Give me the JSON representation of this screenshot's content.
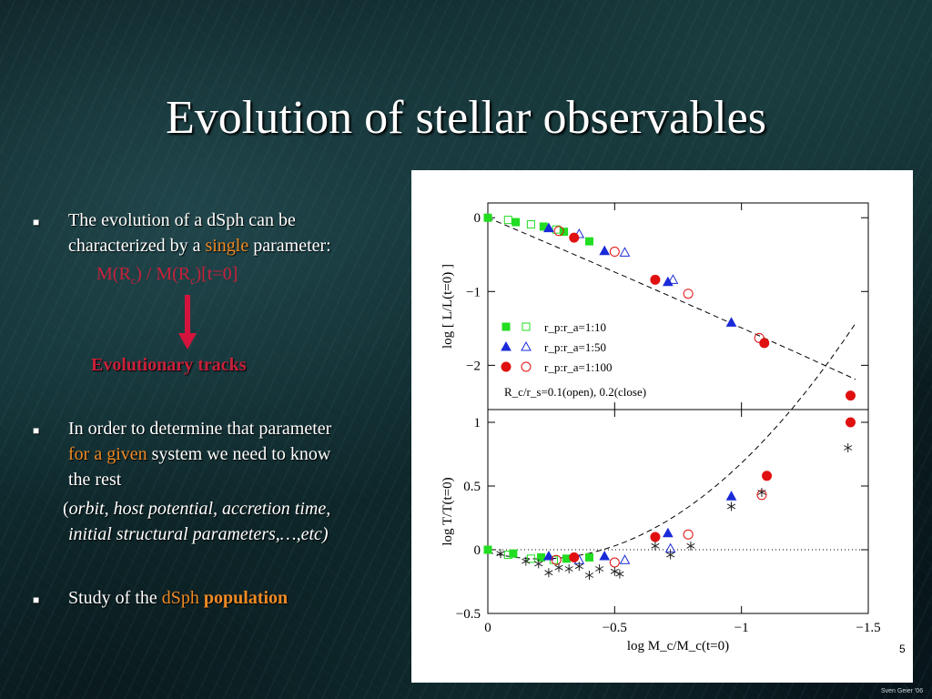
{
  "title": "Evolution of stellar observables",
  "bullets": {
    "b1_part1": "The evolution of a dSph can be",
    "b1_part2": "characterized by a ",
    "b1_highlight": "single",
    "b1_part3": " parameter:",
    "formula": "M(R",
    "formula_sub1": "c",
    "formula_mid": ") / M(R",
    "formula_sub2": "c",
    "formula_end": ")[t=0]",
    "evolutionary_tracks": "Evolutionary tracks",
    "b2_part1": "In order to determine that parameter",
    "b2_highlight": "for a given",
    "b2_part2": " system we need to know",
    "b2_part3": "the rest",
    "b2_paren_open": "(",
    "b2_italic1": "orbit, host potential, accretion time,",
    "b2_italic2": "initial structural parameters,…,etc)",
    "b3_part1": "Study of the ",
    "b3_highlight1": "dSph",
    "b3_highlight2": "population"
  },
  "page_number": "5",
  "signature": "Sven Geier '06",
  "colors": {
    "highlight_orange": "#f08a24",
    "highlight_red": "#c8203a",
    "green": "#22dd22",
    "blue": "#1a2ad8",
    "red": "#e01010"
  },
  "chart_data": [
    {
      "type": "scatter",
      "title": "",
      "xlabel": "log M_c/M_c(t=0)",
      "ylabel": "log [ L/L(t=0) ]",
      "xlim": [
        0,
        -1.5
      ],
      "ylim": [
        -2.6,
        0.2
      ],
      "x_ticks": [
        "0",
        "−0.5",
        "−1",
        "−1.5"
      ],
      "y_ticks": [
        "0",
        "−1",
        "−2"
      ],
      "legend": {
        "placement": "bottom-left",
        "entries": [
          "r_p:r_a=1:10",
          "r_p:r_a=1:50",
          "r_p:r_a=1:100"
        ],
        "note": "R_c/r_s=0.1(open), 0.2(close)"
      },
      "series": [
        {
          "marker": "square",
          "color": "#22dd22",
          "filled": true,
          "points": [
            [
              0,
              0
            ],
            [
              -0.11,
              -0.06
            ],
            [
              -0.22,
              -0.12
            ],
            [
              -0.3,
              -0.19
            ],
            [
              -0.4,
              -0.32
            ]
          ]
        },
        {
          "marker": "square",
          "color": "#22dd22",
          "filled": false,
          "points": [
            [
              -0.08,
              -0.03
            ],
            [
              -0.17,
              -0.09
            ],
            [
              -0.27,
              -0.16
            ]
          ]
        },
        {
          "marker": "triangle",
          "color": "#1a2ad8",
          "filled": true,
          "points": [
            [
              -0.24,
              -0.14
            ],
            [
              -0.46,
              -0.45
            ],
            [
              -0.71,
              -0.87
            ],
            [
              -0.96,
              -1.42
            ]
          ]
        },
        {
          "marker": "triangle",
          "color": "#1a2ad8",
          "filled": false,
          "points": [
            [
              -0.36,
              -0.22
            ],
            [
              -0.54,
              -0.47
            ],
            [
              -0.73,
              -0.84
            ]
          ]
        },
        {
          "marker": "circle",
          "color": "#e01010",
          "filled": true,
          "points": [
            [
              -0.34,
              -0.27
            ],
            [
              -0.66,
              -0.84
            ],
            [
              -1.09,
              -1.7
            ],
            [
              -1.43,
              -2.41
            ]
          ]
        },
        {
          "marker": "circle",
          "color": "#e01010",
          "filled": false,
          "points": [
            [
              -0.28,
              -0.18
            ],
            [
              -0.5,
              -0.46
            ],
            [
              -0.79,
              -1.03
            ],
            [
              -1.07,
              -1.63
            ]
          ]
        }
      ]
    },
    {
      "type": "scatter",
      "title": "",
      "xlabel": "log M_c/M_c(t=0)",
      "ylabel": "log T/T(t=0)",
      "xlim": [
        0,
        -1.5
      ],
      "ylim": [
        -0.5,
        1.1
      ],
      "x_ticks": [
        "0",
        "−0.5",
        "−1",
        "−1.5"
      ],
      "y_ticks": [
        "1",
        "0.5",
        "0",
        "−0.5"
      ],
      "series": [
        {
          "marker": "square",
          "color": "#22dd22",
          "filled": true,
          "points": [
            [
              0,
              0
            ],
            [
              -0.1,
              -0.03
            ],
            [
              -0.21,
              -0.06
            ],
            [
              -0.31,
              -0.07
            ],
            [
              -0.4,
              -0.06
            ]
          ]
        },
        {
          "marker": "square",
          "color": "#22dd22",
          "filled": false,
          "points": [
            [
              -0.08,
              -0.04
            ],
            [
              -0.17,
              -0.07
            ],
            [
              -0.26,
              -0.08
            ]
          ]
        },
        {
          "marker": "triangle",
          "color": "#1a2ad8",
          "filled": true,
          "points": [
            [
              -0.24,
              -0.05
            ],
            [
              -0.46,
              -0.05
            ],
            [
              -0.71,
              0.13
            ],
            [
              -0.96,
              0.42
            ]
          ]
        },
        {
          "marker": "triangle",
          "color": "#1a2ad8",
          "filled": false,
          "points": [
            [
              -0.36,
              -0.08
            ],
            [
              -0.54,
              -0.08
            ],
            [
              -0.72,
              0.01
            ]
          ]
        },
        {
          "marker": "circle",
          "color": "#e01010",
          "filled": true,
          "points": [
            [
              -0.34,
              -0.06
            ],
            [
              -0.66,
              0.1
            ],
            [
              -1.1,
              0.58
            ],
            [
              -1.43,
              1.0
            ]
          ]
        },
        {
          "marker": "circle",
          "color": "#e01010",
          "filled": false,
          "points": [
            [
              -0.27,
              -0.08
            ],
            [
              -0.5,
              -0.1
            ],
            [
              -0.79,
              0.12
            ],
            [
              -1.08,
              0.43
            ]
          ]
        },
        {
          "marker": "star",
          "color": "#222222",
          "filled": true,
          "points": [
            [
              -0.05,
              -0.03
            ],
            [
              -0.15,
              -0.09
            ],
            [
              -0.2,
              -0.11
            ],
            [
              -0.24,
              -0.18
            ],
            [
              -0.28,
              -0.14
            ],
            [
              -0.32,
              -0.15
            ],
            [
              -0.36,
              -0.13
            ],
            [
              -0.4,
              -0.2
            ],
            [
              -0.44,
              -0.15
            ],
            [
              -0.5,
              -0.17
            ],
            [
              -0.52,
              -0.19
            ],
            [
              -0.66,
              0.03
            ],
            [
              -0.72,
              -0.04
            ],
            [
              -0.8,
              0.03
            ],
            [
              -0.96,
              0.34
            ],
            [
              -1.08,
              0.45
            ],
            [
              -1.42,
              0.8
            ]
          ]
        }
      ]
    }
  ]
}
